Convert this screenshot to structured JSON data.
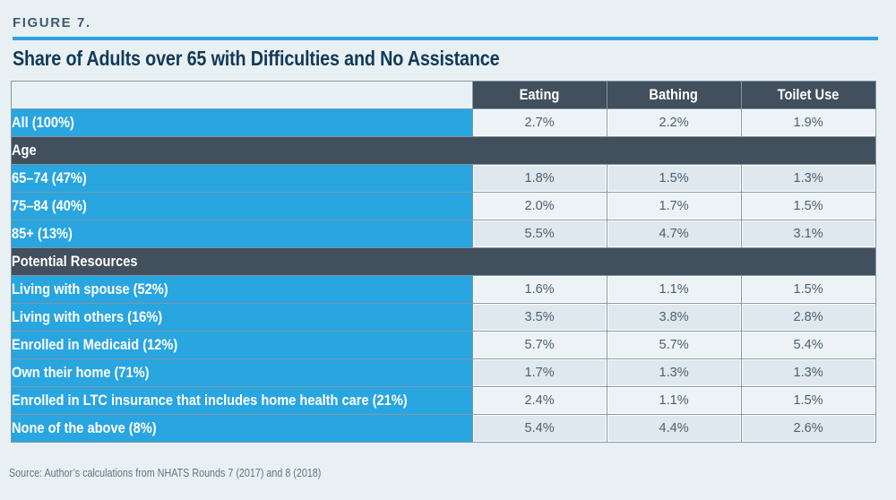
{
  "figure": {
    "label": "FIGURE 7.",
    "title": "Share of Adults over 65 with Difficulties and No Assistance",
    "source": "Source: Author’s calculations from NHATS Rounds 7 (2017) and 8 (2018)"
  },
  "colors": {
    "accent_blue": "#29a5e0",
    "header_dark": "#424f5d",
    "title_navy": "#113a58",
    "cell_light": "#ecf2f5",
    "cell_alt": "#dfe8ee"
  },
  "chart_data": {
    "type": "table",
    "title": "Share of Adults over 65 with Difficulties and No Assistance",
    "columns": [
      "Eating",
      "Bathing",
      "Toilet Use"
    ],
    "rows": [
      {
        "kind": "data",
        "label": "All (100%)",
        "values": [
          "2.7%",
          "2.2%",
          "1.9%"
        ]
      },
      {
        "kind": "section",
        "label": "Age"
      },
      {
        "kind": "data",
        "label": "65–74 (47%)",
        "values": [
          "1.8%",
          "1.5%",
          "1.3%"
        ]
      },
      {
        "kind": "data",
        "label": "75–84 (40%)",
        "values": [
          "2.0%",
          "1.7%",
          "1.5%"
        ]
      },
      {
        "kind": "data",
        "label": "85+ (13%)",
        "values": [
          "5.5%",
          "4.7%",
          "3.1%"
        ]
      },
      {
        "kind": "section",
        "label": "Potential Resources"
      },
      {
        "kind": "data",
        "label": "Living with spouse (52%)",
        "values": [
          "1.6%",
          "1.1%",
          "1.5%"
        ]
      },
      {
        "kind": "data",
        "label": "Living with others (16%)",
        "values": [
          "3.5%",
          "3.8%",
          "2.8%"
        ]
      },
      {
        "kind": "data",
        "label": "Enrolled in Medicaid (12%)",
        "values": [
          "5.7%",
          "5.7%",
          "5.4%"
        ]
      },
      {
        "kind": "data",
        "label": "Own their home (71%)",
        "values": [
          "1.7%",
          "1.3%",
          "1.3%"
        ]
      },
      {
        "kind": "data",
        "label": "Enrolled in LTC insurance that includes home health care (21%)",
        "values": [
          "2.4%",
          "1.1%",
          "1.5%"
        ]
      },
      {
        "kind": "data",
        "label": "None of the above (8%)",
        "values": [
          "5.4%",
          "4.4%",
          "2.6%"
        ]
      }
    ],
    "units": "percent"
  }
}
